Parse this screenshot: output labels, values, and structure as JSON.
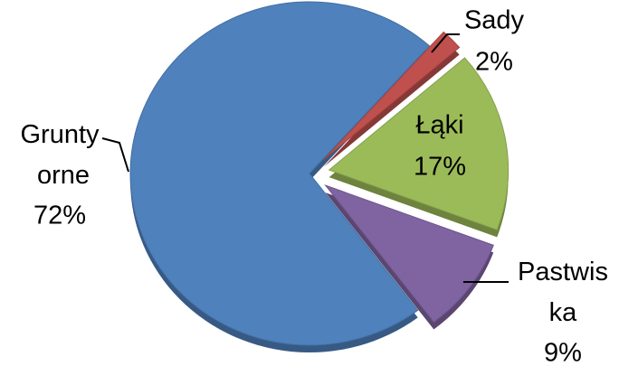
{
  "chart_data": {
    "type": "pie",
    "categories": [
      "Sady",
      "Łąki",
      "Pastwiska",
      "Grunty orne"
    ],
    "values": [
      2,
      17,
      9,
      72
    ],
    "value_labels": [
      "2%",
      "17%",
      "9%",
      "72%"
    ],
    "colors": [
      "#c0504d",
      "#9bbb59",
      "#8064a2",
      "#4f81bd"
    ]
  }
}
